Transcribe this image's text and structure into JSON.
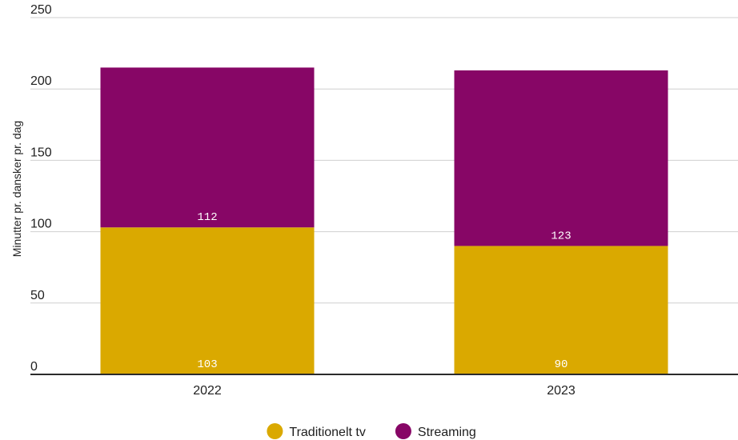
{
  "chart_data": {
    "type": "bar",
    "stacked": true,
    "categories": [
      "2022",
      "2023"
    ],
    "series": [
      {
        "name": "Traditionelt tv",
        "values": [
          103,
          90
        ],
        "color": "#DAA900"
      },
      {
        "name": "Streaming",
        "values": [
          112,
          123
        ],
        "color": "#870666"
      }
    ],
    "ylabel": "Minutter pr. dansker pr. dag",
    "xlabel": "",
    "ylim": [
      0,
      250
    ],
    "yticks": [
      0,
      50,
      100,
      150,
      200,
      250
    ],
    "grid": true,
    "legend_position": "bottom-center"
  }
}
